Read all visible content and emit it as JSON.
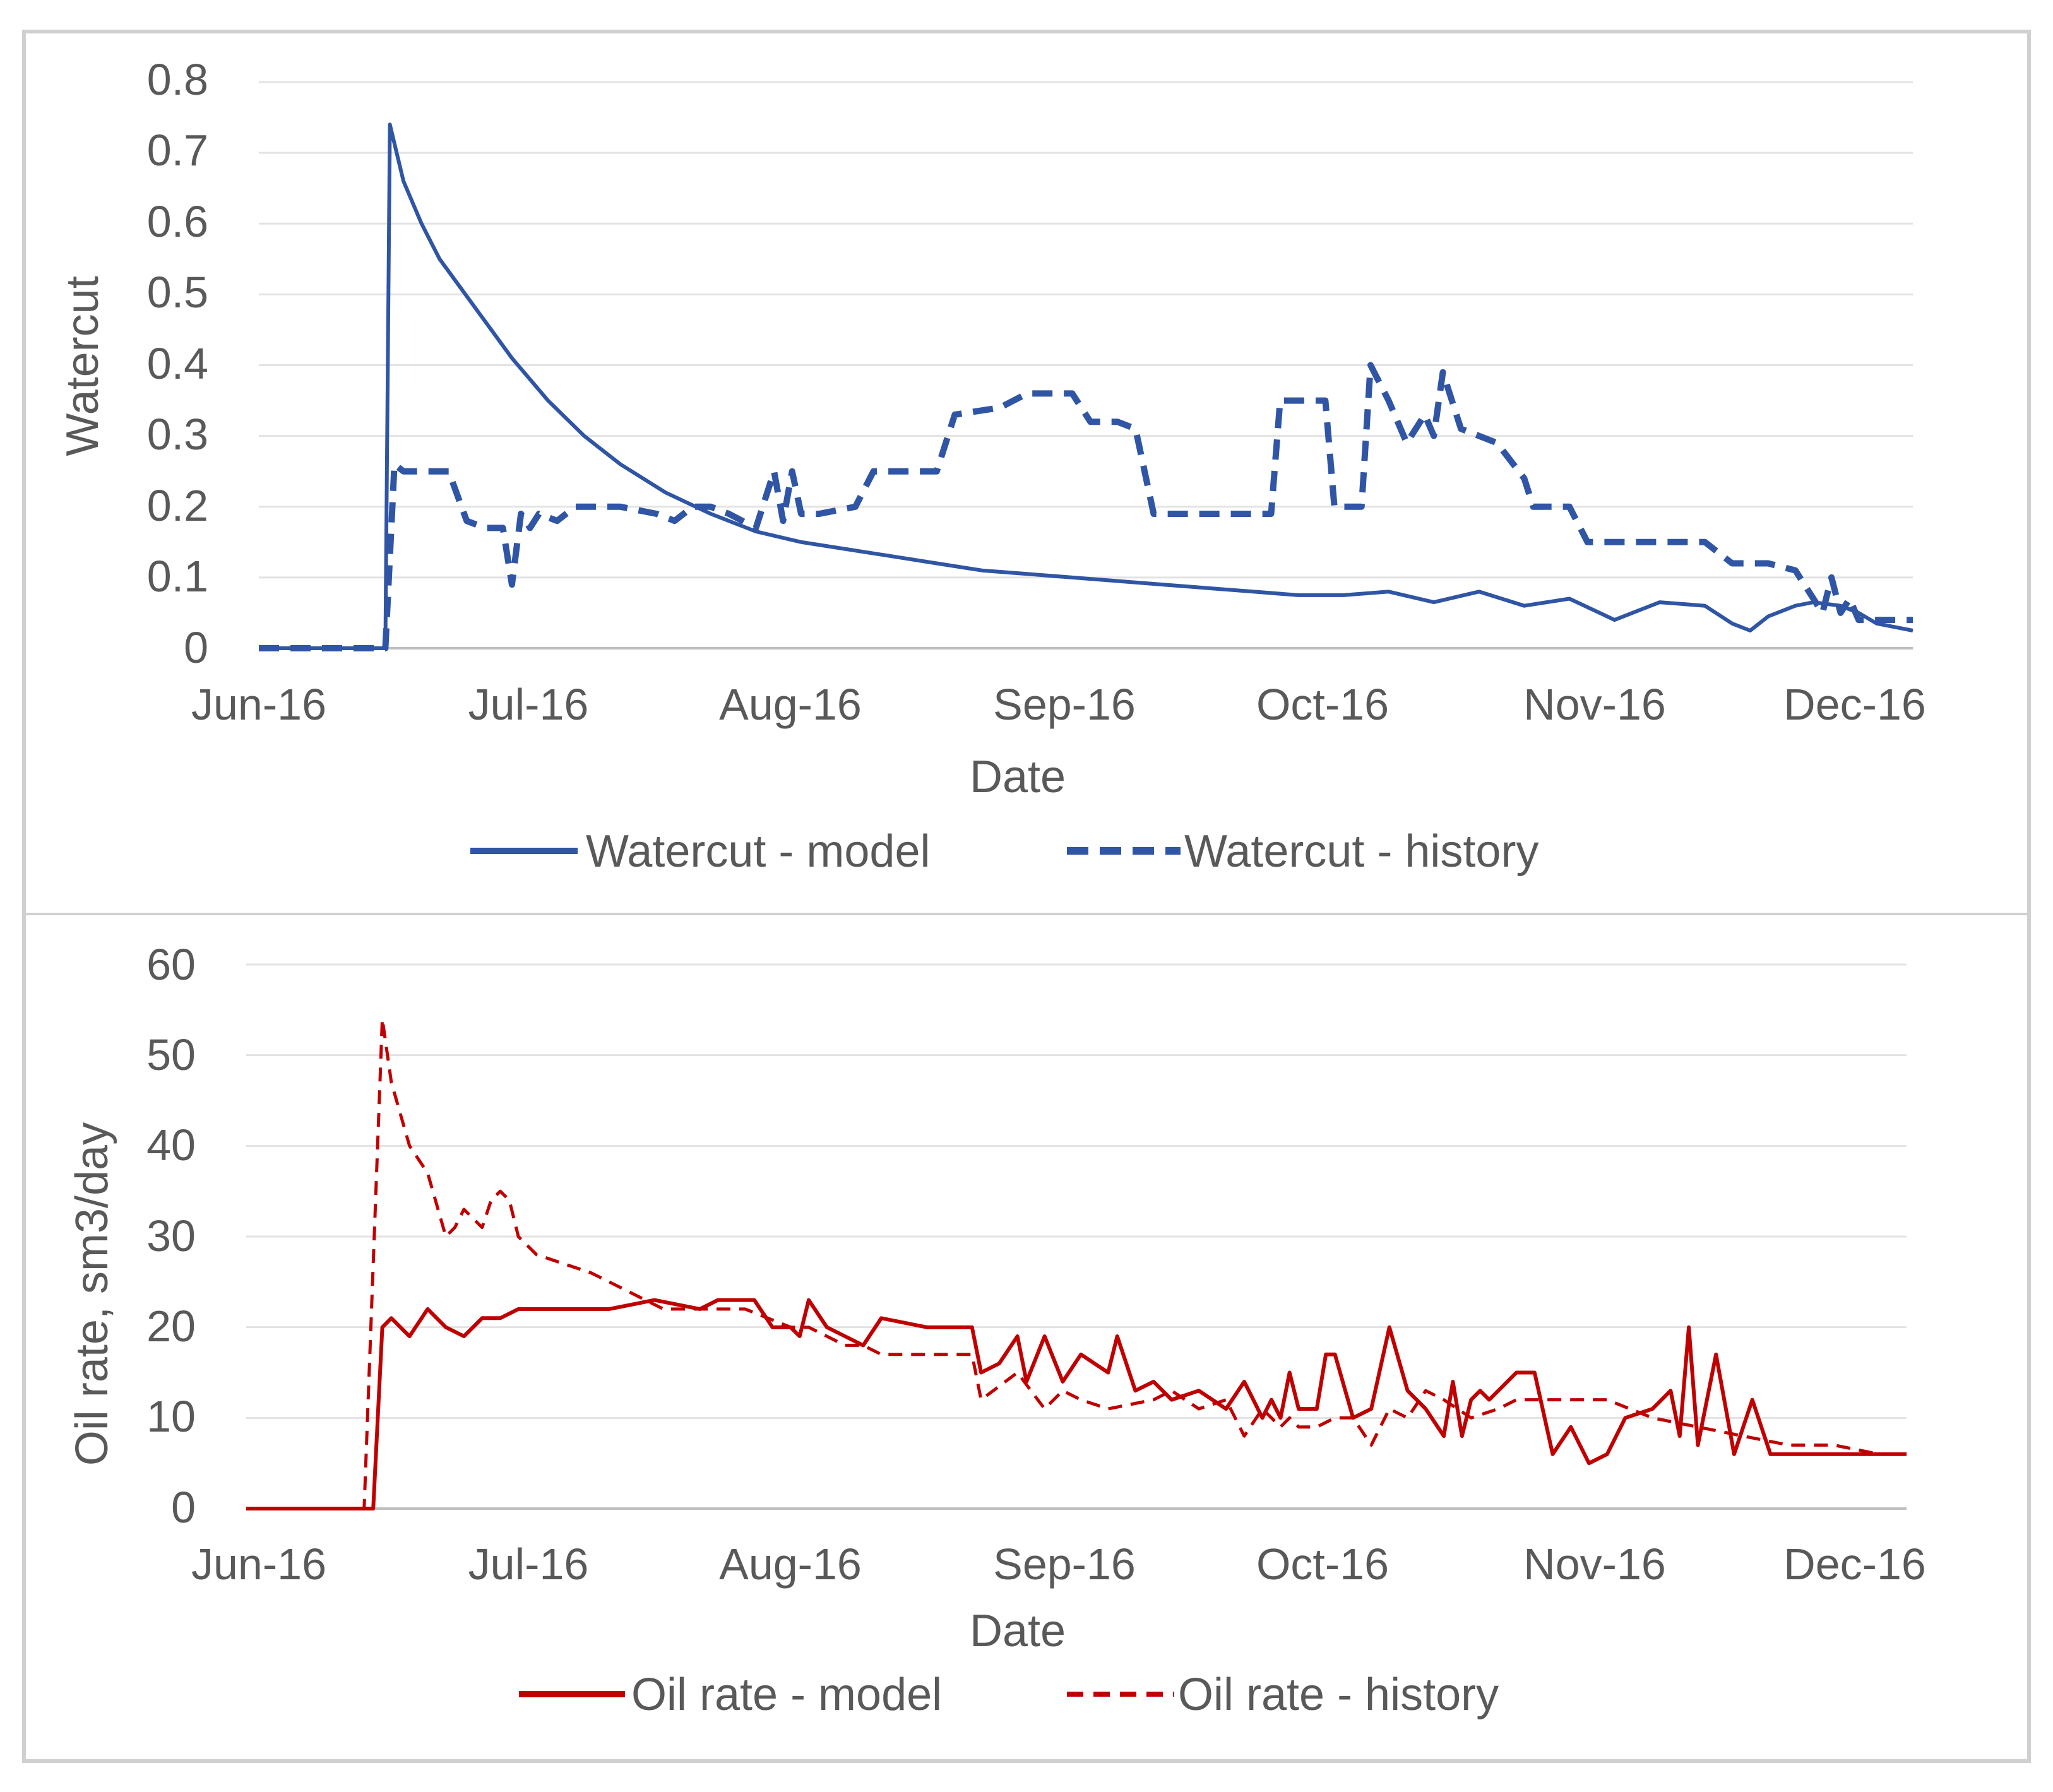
{
  "chart_data": [
    {
      "type": "line",
      "xlabel": "Date",
      "ylabel": "Watercut",
      "x_unit": "days since 1-Jun-2016",
      "xlim": [
        0,
        183
      ],
      "ylim": [
        0,
        0.8
      ],
      "x_ticks": [
        {
          "label": "Jun-16",
          "value": 0
        },
        {
          "label": "Jul-16",
          "value": 30
        },
        {
          "label": "Aug-16",
          "value": 61
        },
        {
          "label": "Sep-16",
          "value": 92
        },
        {
          "label": "Oct-16",
          "value": 122
        },
        {
          "label": "Nov-16",
          "value": 153
        },
        {
          "label": "Dec-16",
          "value": 183
        }
      ],
      "y_ticks": [
        "0",
        "0.1",
        "0.2",
        "0.3",
        "0.4",
        "0.5",
        "0.6",
        "0.7",
        "0.8"
      ],
      "y_tick_values": [
        0,
        0.1,
        0.2,
        0.3,
        0.4,
        0.5,
        0.6,
        0.7,
        0.8
      ],
      "grid": true,
      "legend_position": "bottom",
      "series": [
        {
          "name": "Watercut - model",
          "color": "#2f55a4",
          "dash": "solid",
          "x": [
            0,
            14,
            14.5,
            16,
            18,
            20,
            24,
            28,
            32,
            36,
            40,
            45,
            50,
            55,
            60,
            65,
            70,
            75,
            80,
            85,
            90,
            95,
            100,
            105,
            110,
            115,
            120,
            125,
            130,
            135,
            140,
            145,
            150,
            155,
            160,
            163,
            165,
            167,
            170,
            172,
            175,
            177,
            179,
            181,
            183
          ],
          "y": [
            0,
            0,
            0.74,
            0.66,
            0.6,
            0.55,
            0.48,
            0.41,
            0.35,
            0.3,
            0.26,
            0.22,
            0.19,
            0.165,
            0.15,
            0.14,
            0.13,
            0.12,
            0.11,
            0.105,
            0.1,
            0.095,
            0.09,
            0.085,
            0.08,
            0.075,
            0.075,
            0.08,
            0.065,
            0.08,
            0.06,
            0.07,
            0.04,
            0.065,
            0.06,
            0.035,
            0.025,
            0.045,
            0.06,
            0.065,
            0.06,
            0.05,
            0.035,
            0.03,
            0.025
          ]
        },
        {
          "name": "Watercut - history",
          "color": "#2f55a4",
          "dash": "dashed",
          "x": [
            0,
            14,
            15,
            16,
            21,
            23,
            25,
            27,
            28,
            29,
            30,
            31,
            33,
            35,
            40,
            44,
            46,
            48,
            50,
            52,
            55,
            57,
            58,
            59,
            60,
            62,
            66,
            68,
            75,
            77,
            82,
            85,
            90,
            92,
            95,
            97,
            99,
            101,
            103,
            112,
            113,
            118,
            119,
            122,
            123,
            125,
            127,
            129,
            130,
            131,
            133,
            135,
            137,
            140,
            141,
            145,
            147,
            152,
            155,
            160,
            163,
            164,
            167,
            170,
            173,
            174,
            175,
            176,
            177,
            178,
            183
          ],
          "y": [
            0,
            0,
            0.26,
            0.25,
            0.25,
            0.18,
            0.17,
            0.17,
            0.09,
            0.19,
            0.17,
            0.19,
            0.18,
            0.2,
            0.2,
            0.19,
            0.18,
            0.2,
            0.2,
            0.19,
            0.17,
            0.25,
            0.18,
            0.25,
            0.19,
            0.19,
            0.2,
            0.25,
            0.25,
            0.33,
            0.34,
            0.36,
            0.36,
            0.32,
            0.32,
            0.31,
            0.19,
            0.19,
            0.19,
            0.19,
            0.35,
            0.35,
            0.2,
            0.2,
            0.4,
            0.35,
            0.29,
            0.33,
            0.3,
            0.39,
            0.31,
            0.3,
            0.29,
            0.24,
            0.2,
            0.2,
            0.15,
            0.15,
            0.15,
            0.15,
            0.12,
            0.12,
            0.12,
            0.11,
            0.05,
            0.1,
            0.05,
            0.07,
            0.04,
            0.04,
            0.04
          ]
        }
      ]
    },
    {
      "type": "line",
      "xlabel": "Date",
      "ylabel": "Oil rate, sm3/day",
      "x_unit": "days since 1-Jun-2016",
      "xlim": [
        0,
        183
      ],
      "ylim": [
        0,
        60
      ],
      "x_ticks": [
        {
          "label": "Jun-16",
          "value": 0
        },
        {
          "label": "Jul-16",
          "value": 30
        },
        {
          "label": "Aug-16",
          "value": 61
        },
        {
          "label": "Sep-16",
          "value": 92
        },
        {
          "label": "Oct-16",
          "value": 122
        },
        {
          "label": "Nov-16",
          "value": 153
        },
        {
          "label": "Dec-16",
          "value": 183
        }
      ],
      "y_ticks": [
        "0",
        "10",
        "20",
        "30",
        "40",
        "50",
        "60"
      ],
      "y_tick_values": [
        0,
        10,
        20,
        30,
        40,
        50,
        60
      ],
      "grid": true,
      "legend_position": "bottom",
      "series": [
        {
          "name": "Oil rate - model",
          "color": "#c00000",
          "dash": "solid",
          "x": [
            0,
            14,
            15,
            16,
            18,
            20,
            22,
            24,
            26,
            28,
            30,
            35,
            40,
            45,
            50,
            52,
            54,
            56,
            58,
            59,
            60,
            61,
            62,
            64,
            66,
            68,
            70,
            75,
            80,
            81,
            83,
            85,
            86,
            88,
            90,
            92,
            95,
            96,
            98,
            100,
            102,
            105,
            108,
            110,
            112,
            113,
            114,
            115,
            116,
            117,
            118,
            119,
            120,
            122,
            124,
            126,
            128,
            130,
            132,
            133,
            134,
            135,
            136,
            137,
            138,
            140,
            141,
            142,
            144,
            146,
            148,
            150,
            152,
            155,
            157,
            158,
            159,
            160,
            162,
            164,
            166,
            168,
            169,
            170,
            171,
            172,
            173,
            174,
            175,
            176,
            177,
            178,
            180,
            183
          ],
          "y": [
            0,
            0,
            20,
            21,
            19,
            22,
            20,
            19,
            21,
            21,
            22,
            22,
            22,
            23,
            22,
            23,
            23,
            23,
            20,
            20,
            20,
            19,
            23,
            20,
            19,
            18,
            21,
            20,
            20,
            15,
            16,
            19,
            14,
            19,
            14,
            17,
            15,
            19,
            13,
            14,
            12,
            13,
            11,
            14,
            10,
            12,
            10,
            15,
            11,
            11,
            11,
            17,
            17,
            10,
            11,
            20,
            13,
            11,
            8,
            14,
            8,
            12,
            13,
            12,
            13,
            15,
            15,
            15,
            6,
            9,
            5,
            6,
            10,
            11,
            13,
            8,
            20,
            7,
            17,
            6,
            12,
            6,
            6,
            6,
            6,
            6,
            6,
            6,
            6,
            6,
            6,
            6,
            6,
            6
          ]
        },
        {
          "name": "Oil rate - history",
          "color": "#c00000",
          "dash": "dashed",
          "x": [
            0,
            13,
            14,
            15,
            16,
            18,
            20,
            22,
            23,
            24,
            26,
            27,
            28,
            29,
            30,
            31,
            32,
            35,
            38,
            40,
            42,
            44,
            46,
            48,
            50,
            55,
            60,
            62,
            64,
            66,
            68,
            70,
            75,
            80,
            81,
            85,
            88,
            90,
            92,
            95,
            100,
            102,
            105,
            108,
            110,
            112,
            114,
            115,
            116,
            118,
            120,
            122,
            124,
            126,
            128,
            130,
            132,
            135,
            138,
            140,
            142,
            145,
            150,
            155,
            160,
            165,
            170,
            175,
            180,
            183
          ],
          "y": [
            0,
            0,
            27,
            54,
            47,
            40,
            37,
            30,
            31,
            33,
            31,
            34,
            35,
            34,
            30,
            29,
            28,
            27,
            26,
            25,
            24,
            23,
            22,
            22,
            22,
            22,
            20,
            20,
            19,
            18,
            18,
            17,
            17,
            17,
            12,
            15,
            11,
            13,
            12,
            11,
            12,
            13,
            11,
            12,
            8,
            11,
            9,
            10,
            9,
            9,
            10,
            10,
            7,
            11,
            10,
            13,
            12,
            10,
            11,
            12,
            12,
            12,
            12,
            10,
            9,
            8,
            7,
            7,
            6,
            6
          ]
        }
      ]
    }
  ]
}
